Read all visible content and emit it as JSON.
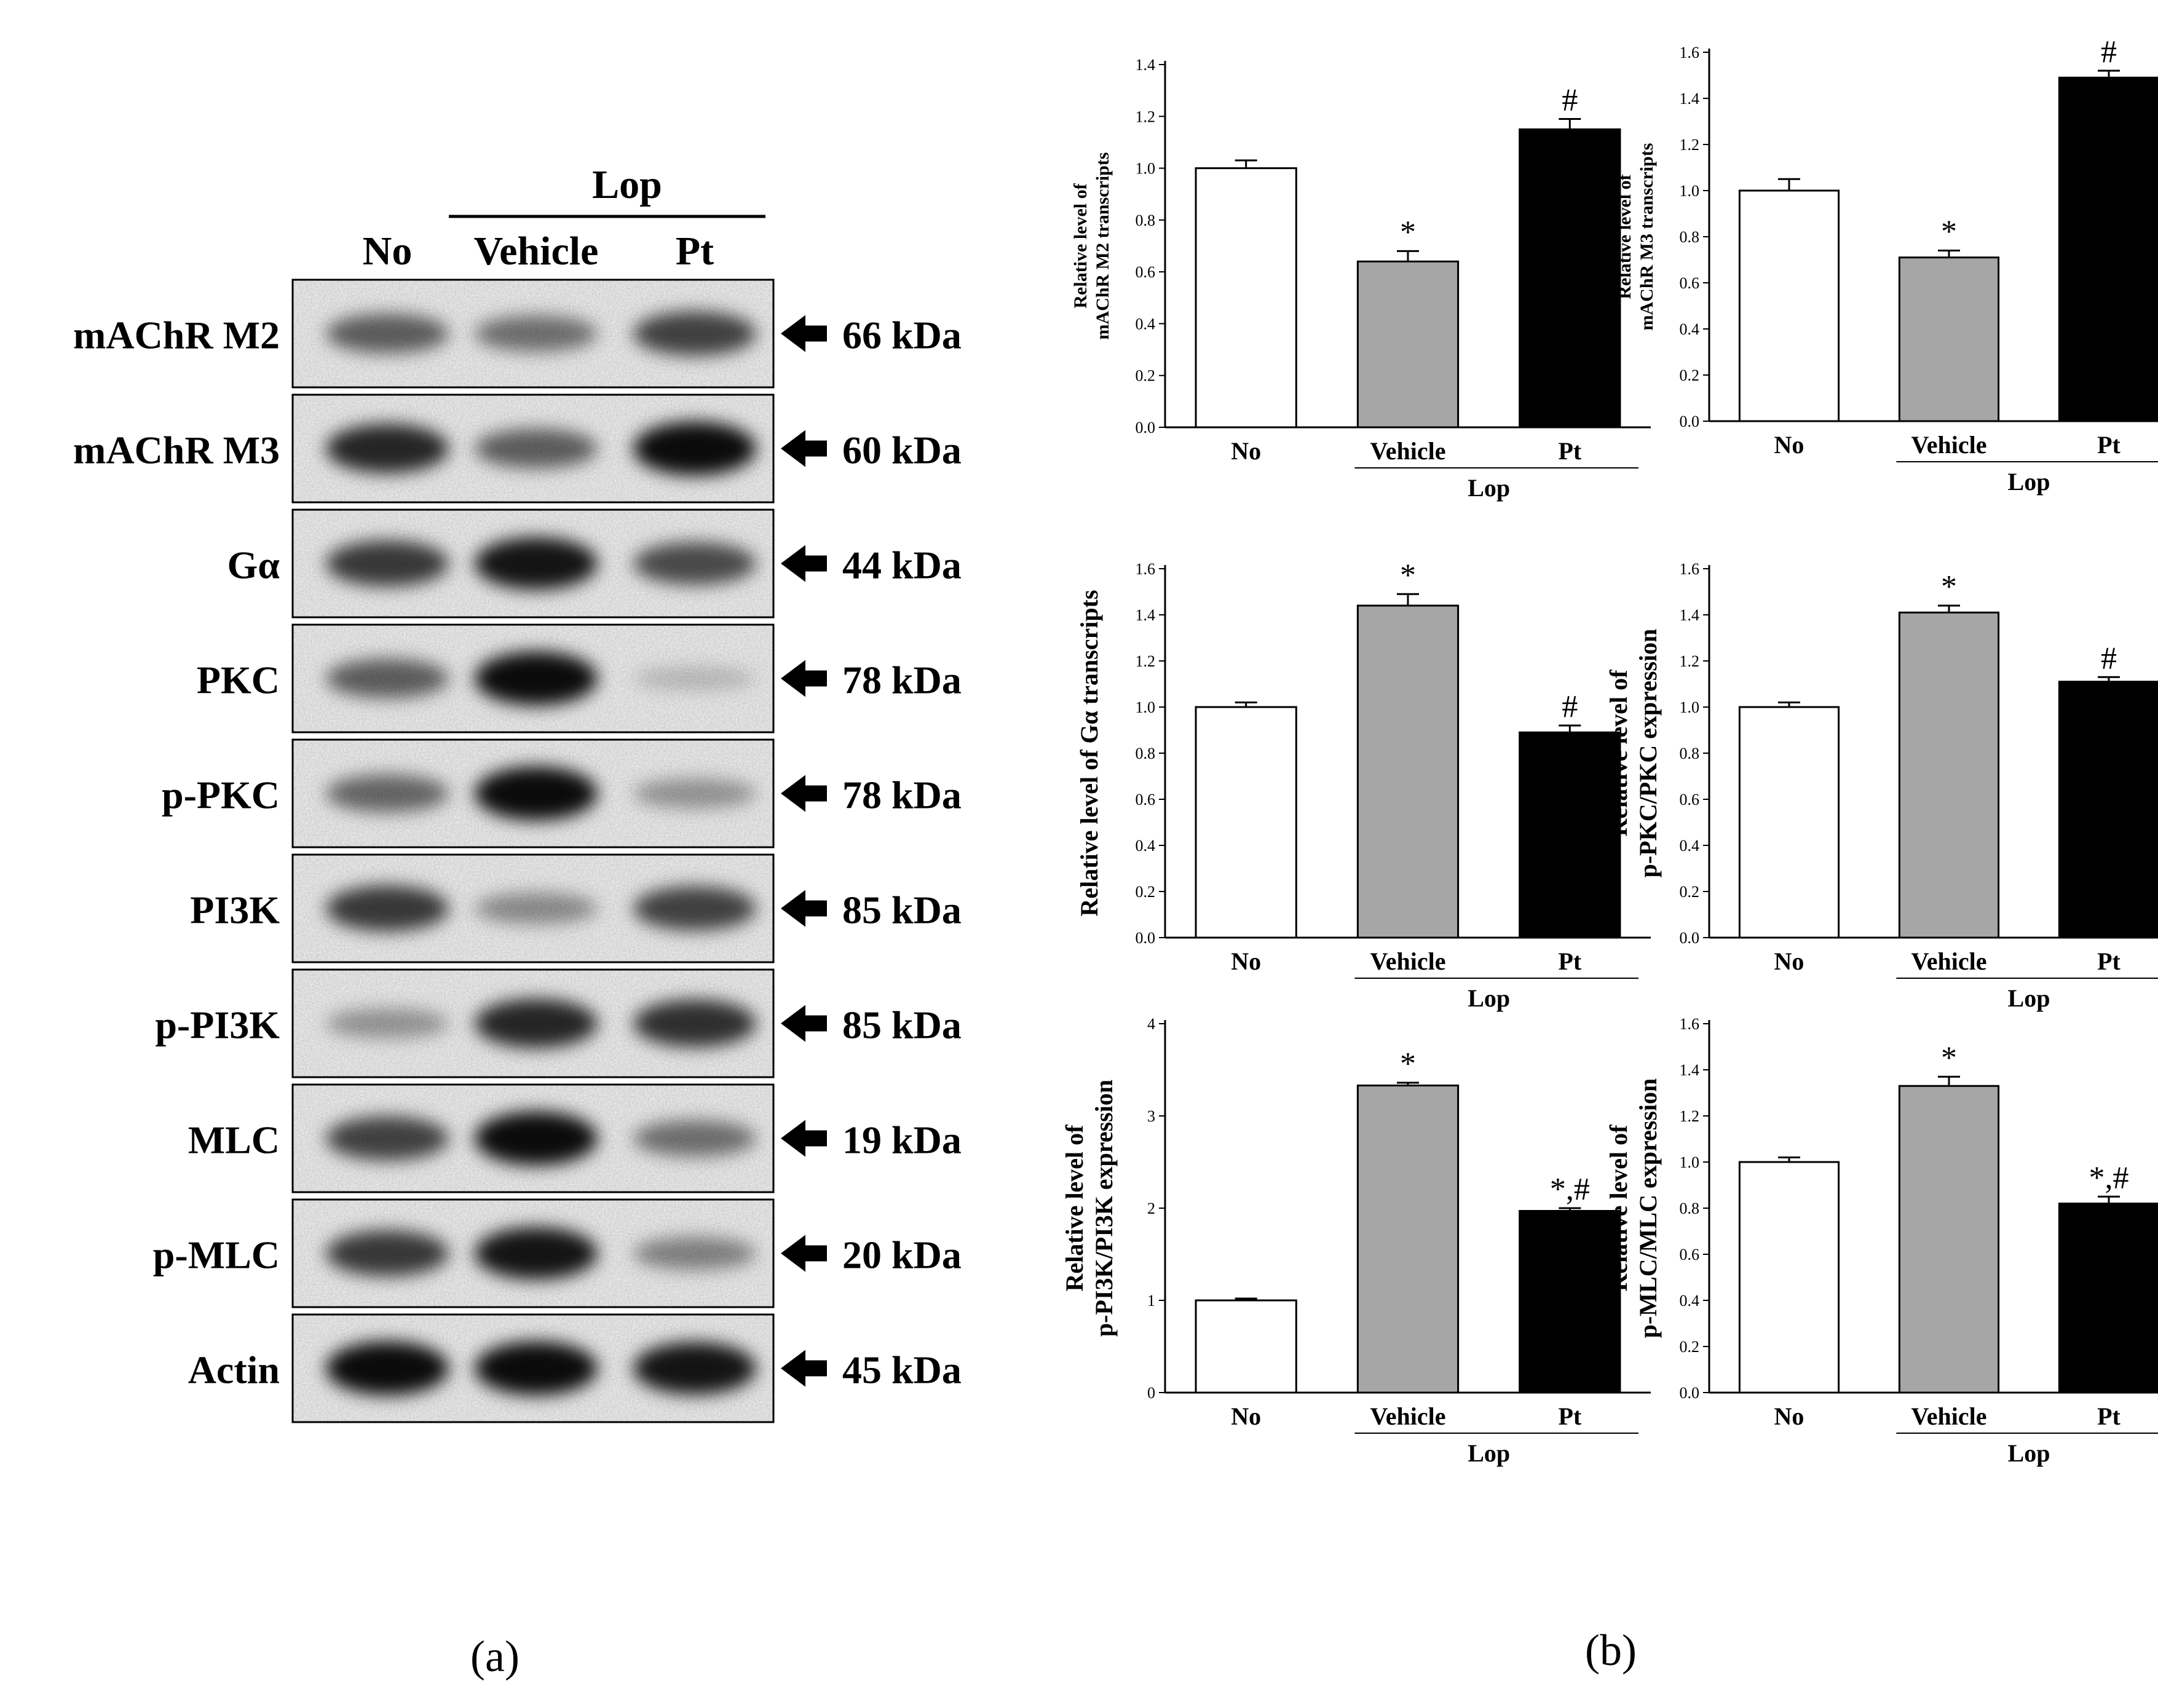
{
  "panel_a": {
    "label": "(a)",
    "group_label": "Lop",
    "lanes": [
      "No",
      "Vehicle",
      "Pt"
    ],
    "blots": [
      {
        "name": "mAChR M2",
        "size": "66 kDa",
        "bands": [
          0.55,
          0.45,
          0.7
        ]
      },
      {
        "name": "mAChR M3",
        "size": "60 kDa",
        "bands": [
          0.85,
          0.55,
          1.0
        ]
      },
      {
        "name": "Gα",
        "size": "44 kDa",
        "bands": [
          0.75,
          0.95,
          0.65
        ]
      },
      {
        "name": "PKC",
        "size": "78 kDa",
        "bands": [
          0.55,
          1.0,
          0.05
        ]
      },
      {
        "name": "p-PKC",
        "size": "78 kDa",
        "bands": [
          0.5,
          1.0,
          0.25
        ]
      },
      {
        "name": "PI3K",
        "size": "85 kDa",
        "bands": [
          0.75,
          0.3,
          0.7
        ]
      },
      {
        "name": "p-PI3K",
        "size": "85 kDa",
        "bands": [
          0.25,
          0.85,
          0.8
        ]
      },
      {
        "name": "MLC",
        "size": "19 kDa",
        "bands": [
          0.7,
          1.0,
          0.45
        ]
      },
      {
        "name": "p-MLC",
        "size": "20 kDa",
        "bands": [
          0.75,
          0.95,
          0.35
        ]
      },
      {
        "name": "Actin",
        "size": "45 kDa",
        "bands": [
          1.0,
          1.0,
          0.95
        ]
      }
    ]
  },
  "panel_b": {
    "label": "(b)"
  },
  "chart_data": [
    {
      "type": "bar",
      "categories": [
        "No",
        "Vehicle",
        "Pt"
      ],
      "group_label": "Lop",
      "ylabel": [
        "Relative level of",
        "mAChR M2 transcripts"
      ],
      "ylim": [
        0,
        1.4
      ],
      "yticks": [
        "0.0",
        "0.2",
        "0.4",
        "0.6",
        "0.8",
        "1.0",
        "1.2",
        "1.4"
      ],
      "values": [
        1.0,
        0.64,
        1.15
      ],
      "errors": [
        0.03,
        0.04,
        0.04
      ],
      "annotations": [
        "",
        "*",
        "#"
      ],
      "colors": [
        "#ffffff",
        "#a6a6a6",
        "#000000"
      ]
    },
    {
      "type": "bar",
      "categories": [
        "No",
        "Vehicle",
        "Pt"
      ],
      "group_label": "Lop",
      "ylabel": [
        "Relative level of",
        "mAChR M3 transcripts"
      ],
      "ylim": [
        0,
        1.6
      ],
      "yticks": [
        "0.0",
        "0.2",
        "0.4",
        "0.6",
        "0.8",
        "1.0",
        "1.2",
        "1.4",
        "1.6"
      ],
      "values": [
        1.0,
        0.71,
        1.49
      ],
      "errors": [
        0.05,
        0.03,
        0.03
      ],
      "annotations": [
        "",
        "*",
        "#"
      ],
      "colors": [
        "#ffffff",
        "#a6a6a6",
        "#000000"
      ]
    },
    {
      "type": "bar",
      "categories": [
        "No",
        "Vehicle",
        "Pt"
      ],
      "group_label": "Lop",
      "ylabel": [
        "Relative level of Gα transcripts"
      ],
      "ylim": [
        0,
        1.6
      ],
      "yticks": [
        "0.0",
        "0.2",
        "0.4",
        "0.6",
        "0.8",
        "1.0",
        "1.2",
        "1.4",
        "1.6"
      ],
      "values": [
        1.0,
        1.44,
        0.89
      ],
      "errors": [
        0.02,
        0.05,
        0.03
      ],
      "annotations": [
        "",
        "*",
        "#"
      ],
      "colors": [
        "#ffffff",
        "#a6a6a6",
        "#000000"
      ]
    },
    {
      "type": "bar",
      "categories": [
        "No",
        "Vehicle",
        "Pt"
      ],
      "group_label": "Lop",
      "ylabel": [
        "Relative level of",
        "p-PKC/PKC expression"
      ],
      "ylim": [
        0,
        1.6
      ],
      "yticks": [
        "0.0",
        "0.2",
        "0.4",
        "0.6",
        "0.8",
        "1.0",
        "1.2",
        "1.4",
        "1.6"
      ],
      "values": [
        1.0,
        1.41,
        1.11
      ],
      "errors": [
        0.02,
        0.03,
        0.02
      ],
      "annotations": [
        "",
        "*",
        "#"
      ],
      "colors": [
        "#ffffff",
        "#a6a6a6",
        "#000000"
      ]
    },
    {
      "type": "bar",
      "categories": [
        "No",
        "Vehicle",
        "Pt"
      ],
      "group_label": "Lop",
      "ylabel": [
        "Relative level of",
        "p-PI3K/PI3K expression"
      ],
      "ylim": [
        0,
        4
      ],
      "yticks": [
        "0",
        "1",
        "2",
        "3",
        "4"
      ],
      "values": [
        1.0,
        3.33,
        1.97
      ],
      "errors": [
        0.02,
        0.03,
        0.03
      ],
      "annotations": [
        "",
        "*",
        "*,#"
      ],
      "colors": [
        "#ffffff",
        "#a6a6a6",
        "#000000"
      ]
    },
    {
      "type": "bar",
      "categories": [
        "No",
        "Vehicle",
        "Pt"
      ],
      "group_label": "Lop",
      "ylabel": [
        "Relative level of",
        "p-MLC/MLC expression"
      ],
      "ylim": [
        0,
        1.6
      ],
      "yticks": [
        "0.0",
        "0.2",
        "0.4",
        "0.6",
        "0.8",
        "1.0",
        "1.2",
        "1.4",
        "1.6"
      ],
      "values": [
        1.0,
        1.33,
        0.82
      ],
      "errors": [
        0.02,
        0.04,
        0.03
      ],
      "annotations": [
        "",
        "*",
        "*,#"
      ],
      "colors": [
        "#ffffff",
        "#a6a6a6",
        "#000000"
      ]
    }
  ]
}
